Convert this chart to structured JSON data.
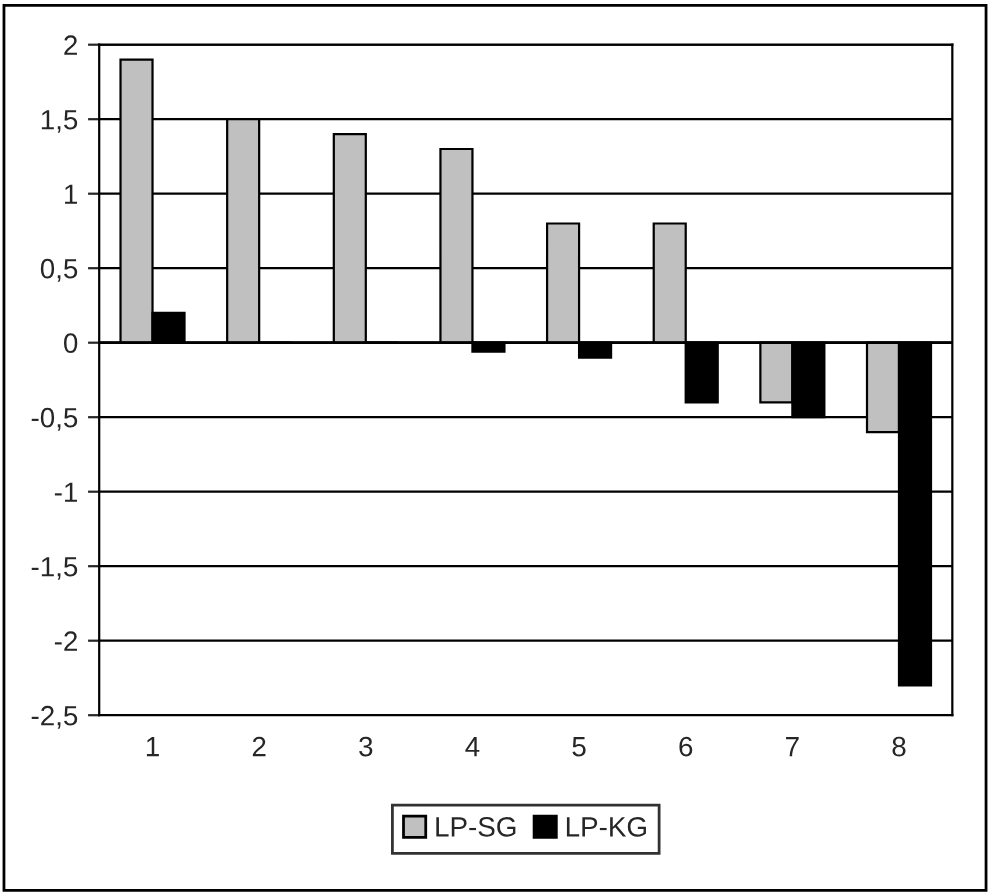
{
  "chart_data": {
    "type": "bar",
    "categories": [
      "1",
      "2",
      "3",
      "4",
      "5",
      "6",
      "7",
      "8"
    ],
    "series": [
      {
        "name": "LP-SG",
        "color": "#c0c0c0",
        "values": [
          1.9,
          1.5,
          1.4,
          1.3,
          0.8,
          0.8,
          -0.4,
          -0.6
        ]
      },
      {
        "name": "LP-KG",
        "color": "#000000",
        "values": [
          0.2,
          0,
          0,
          -0.06,
          -0.1,
          -0.4,
          -0.5,
          -2.3
        ]
      }
    ],
    "ylim": [
      -2.5,
      2
    ],
    "yticks": [
      {
        "value": -2.5,
        "label": "-2,5"
      },
      {
        "value": -2,
        "label": "-2"
      },
      {
        "value": -1.5,
        "label": "-1,5"
      },
      {
        "value": -1,
        "label": "-1"
      },
      {
        "value": -0.5,
        "label": "-0,5"
      },
      {
        "value": 0,
        "label": "0"
      },
      {
        "value": 0.5,
        "label": "0,5"
      },
      {
        "value": 1,
        "label": "1"
      },
      {
        "value": 1.5,
        "label": "1,5"
      },
      {
        "value": 2,
        "label": "2"
      }
    ],
    "grid": "y",
    "legend": "bottom"
  }
}
